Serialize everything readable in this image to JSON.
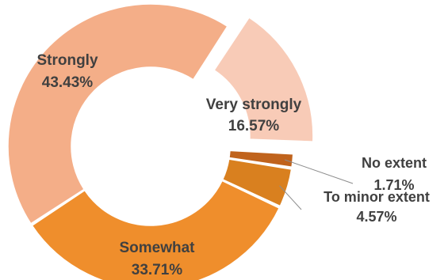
{
  "chart_data": {
    "type": "pie",
    "variant": "doughnut",
    "title": "",
    "legend": "none",
    "slices": [
      {
        "name": "Very strongly",
        "value": 16.57,
        "label": "16.57%",
        "color": "#F8CBB7"
      },
      {
        "name": "No extent",
        "value": 1.71,
        "label": "1.71%",
        "color": "#C0631C"
      },
      {
        "name": "To minor extent",
        "value": 4.57,
        "label": "4.57%",
        "color": "#D9801F"
      },
      {
        "name": "Somewhat",
        "value": 33.71,
        "label": "33.71%",
        "color": "#EF8E2C"
      },
      {
        "name": "Strongly",
        "value": 43.43,
        "label": "43.43%",
        "color": "#F4AE88"
      }
    ]
  }
}
